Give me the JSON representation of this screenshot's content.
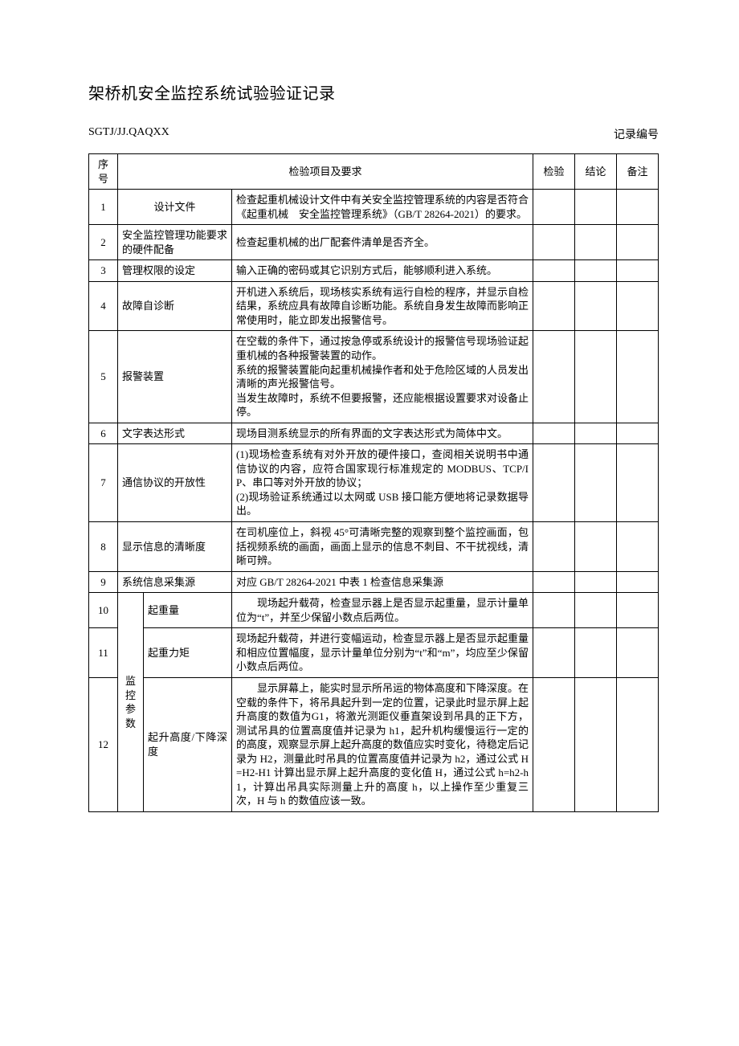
{
  "title": "架桥机安全监控系统试验验证记录",
  "doc_code": "SGTJ/JJ.QAQXX",
  "record_no_label": "记录编号",
  "headers": {
    "seq": "序号",
    "item": "检验项目及要求",
    "check": "检验",
    "result": "结论",
    "remark": "备注"
  },
  "group_label": "监控参数",
  "rows": [
    {
      "no": "1",
      "name": "设计文件",
      "req": "检查起重机械设计文件中有关安全监控管理系统的内容是否符合《起重机械　安全监控管理系统》（GB/T 28264-2021）的要求。"
    },
    {
      "no": "2",
      "name": "安全监控管理功能要求的硬件配备",
      "req": "检查起重机械的出厂配套件清单是否齐全。"
    },
    {
      "no": "3",
      "name": "管理权限的设定",
      "req": "输入正确的密码或其它识别方式后，能够顺利进入系统。"
    },
    {
      "no": "4",
      "name": "故障自诊断",
      "req": "开机进入系统后，现场核实系统有运行自检的程序，并显示自检结果，系统应具有故障自诊断功能。系统自身发生故障而影响正常使用时，能立即发出报警信号。"
    },
    {
      "no": "5",
      "name": "报警装置",
      "req": "在空载的条件下，通过按急停或系统设计的报警信号现场验证起重机械的各种报警装置的动作。\n系统的报警装置能向起重机械操作者和处于危险区域的人员发出清晰的声光报警信号。\n当发生故障时，系统不但要报警，还应能根据设置要求对设备止停。"
    },
    {
      "no": "6",
      "name": "文字表达形式",
      "req": "现场目测系统显示的所有界面的文字表达形式为简体中文。"
    },
    {
      "no": "7",
      "name": "通信协议的开放性",
      "req": "(1)现场检查系统有对外开放的硬件接口，查阅相关说明书中通信协议的内容，应符合国家现行标准规定的 MODBUS、TCP/IP、串口等对外开放的协议；\n(2)现场验证系统通过以太网或 USB 接口能方便地将记录数据导出。"
    },
    {
      "no": "8",
      "name": "显示信息的清晰度",
      "req": "在司机座位上，斜视 45°可清晰完整的观察到整个监控画面，包括视频系统的画面，画面上显示的信息不刺目、不干扰视线，清晰可辨。"
    },
    {
      "no": "9",
      "name": "系统信息采集源",
      "req": "对应 GB/T 28264-2021 中表 1 检查信息采集源"
    },
    {
      "no": "10",
      "name": "起重量",
      "req": "　　现场起升载荷，检查显示器上是否显示起重量，显示计量单位为“t”，并至少保留小数点后两位。"
    },
    {
      "no": "11",
      "name": "起重力矩",
      "req": "现场起升载荷，并进行变幅运动，检查显示器上是否显示起重量和相应位置幅度，显示计量单位分别为“t”和“m”，均应至少保留小数点后两位。"
    },
    {
      "no": "12",
      "name": "起升高度/下降深度",
      "req": "　　显示屏幕上，能实时显示所吊运的物体高度和下降深度。在空载的条件下，将吊具起升到一定的位置，记录此时显示屏上起升高度的数值为G1，将激光测距仪垂直架设到吊具的正下方，测试吊具的位置高度值并记录为 h1，起升机构缓慢运行一定的的高度，观察显示屏上起升高度的数值应实时变化，待稳定后记录为 H2，测量此时吊具的位置高度值并记录为 h2，通过公式 H=H2-H1 计算出显示屏上起升高度的变化值 H，通过公式 h=h2-h1，计算出吊具实际测量上升的高度 h，以上操作至少重复三次，H 与 h 的数值应该一致。"
    }
  ]
}
